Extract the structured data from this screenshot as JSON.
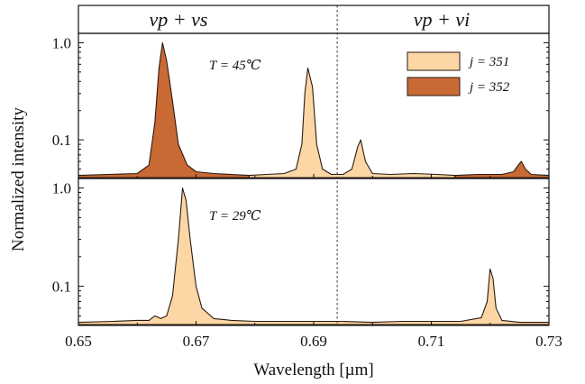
{
  "colors": {
    "j351": "#fdd6a5",
    "j352": "#c96a35",
    "stroke": "#2a1a10"
  },
  "header": {
    "left": "νp + νs",
    "right": "νp + νi"
  },
  "chart_data": {
    "type": "area",
    "xlabel": "Wavelength [µm]",
    "ylabel": "Normalized intensity",
    "xlim": [
      0.65,
      0.73
    ],
    "x_ticks": [
      "0.65",
      "0.67",
      "0.69",
      "0.71",
      "0.73"
    ],
    "y_ticks": [
      "1.0",
      "0.1"
    ],
    "y_scale": "log",
    "ylim": [
      0.04,
      1.25
    ],
    "divider_x": 0.694,
    "legend": {
      "placement": "top-right",
      "entries": [
        {
          "label": "j = 351",
          "color_key": "j351"
        },
        {
          "label": "j = 352",
          "color_key": "j352"
        }
      ]
    },
    "panels": [
      {
        "name": "top",
        "annotation": "T = 45℃",
        "series": [
          {
            "legend": "j = 352",
            "color_key": "j352",
            "x": [
              0.65,
              0.655,
              0.66,
              0.662,
              0.663,
              0.6637,
              0.6643,
              0.665,
              0.666,
              0.667,
              0.6685,
              0.67,
              0.673,
              0.676,
              0.679
            ],
            "y": [
              0.043,
              0.044,
              0.045,
              0.055,
              0.15,
              0.55,
              1.0,
              0.65,
              0.25,
              0.09,
              0.055,
              0.047,
              0.045,
              0.044,
              0.043
            ]
          },
          {
            "legend": "j = 351",
            "color_key": "j351",
            "x": [
              0.679,
              0.682,
              0.685,
              0.687,
              0.688,
              0.6885,
              0.689,
              0.6898,
              0.6905,
              0.6915,
              0.693,
              0.695,
              0.6965,
              0.6975,
              0.698,
              0.6988,
              0.7,
              0.703,
              0.707,
              0.711,
              0.714
            ],
            "y": [
              0.043,
              0.044,
              0.045,
              0.05,
              0.09,
              0.3,
              0.55,
              0.35,
              0.09,
              0.05,
              0.044,
              0.044,
              0.05,
              0.085,
              0.1,
              0.06,
              0.045,
              0.044,
              0.045,
              0.044,
              0.043
            ]
          },
          {
            "legend": "j = 352",
            "color_key": "j352",
            "x": [
              0.714,
              0.718,
              0.722,
              0.724,
              0.7248,
              0.7253,
              0.726,
              0.727,
              0.73
            ],
            "y": [
              0.043,
              0.044,
              0.044,
              0.047,
              0.055,
              0.06,
              0.05,
              0.044,
              0.043
            ]
          }
        ]
      },
      {
        "name": "bottom",
        "annotation": "T = 29℃",
        "series": [
          {
            "legend": "j = 351",
            "color_key": "j351",
            "x": [
              0.65,
              0.656,
              0.66,
              0.662,
              0.663,
              0.664,
              0.665,
              0.666,
              0.667,
              0.6677,
              0.6683,
              0.669,
              0.67,
              0.671,
              0.673,
              0.676,
              0.68,
              0.685,
              0.69,
              0.695,
              0.7,
              0.705,
              0.71,
              0.715,
              0.7185,
              0.7195,
              0.72,
              0.7205,
              0.721,
              0.722,
              0.725,
              0.73
            ],
            "y": [
              0.043,
              0.044,
              0.045,
              0.045,
              0.05,
              0.047,
              0.05,
              0.08,
              0.3,
              1.0,
              0.75,
              0.3,
              0.1,
              0.06,
              0.047,
              0.045,
              0.044,
              0.044,
              0.044,
              0.044,
              0.043,
              0.044,
              0.044,
              0.044,
              0.048,
              0.07,
              0.15,
              0.12,
              0.06,
              0.045,
              0.043,
              0.043
            ]
          }
        ]
      }
    ]
  }
}
